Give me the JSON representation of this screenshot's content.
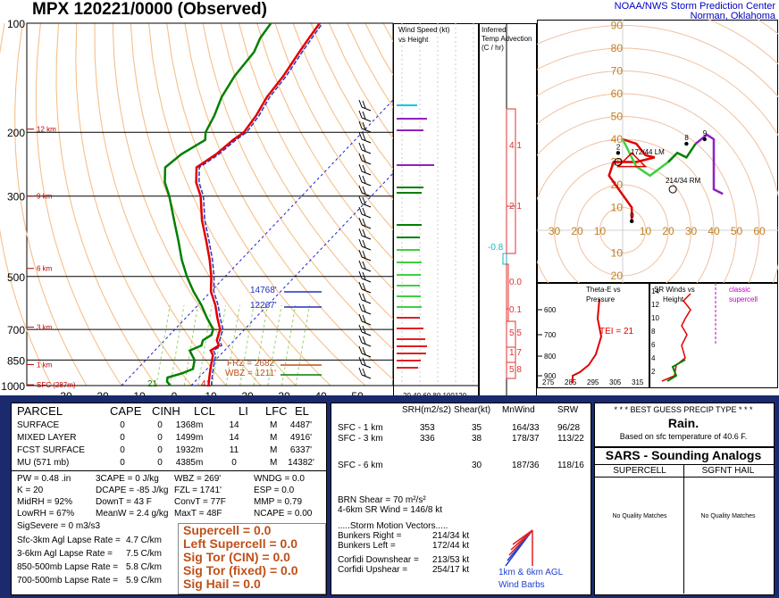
{
  "header": {
    "title": "MPX  120221/0000  (Observed)",
    "org_line1": "NOAA/NWS Storm Prediction Center",
    "org_line2": "Norman, Oklahoma"
  },
  "skewt": {
    "pressure_labels": [
      "100",
      "200",
      "300",
      "500",
      "700",
      "850",
      "1000"
    ],
    "temp_labels": [
      "-30",
      "-20",
      "-10",
      "0",
      "10",
      "20",
      "30",
      "40",
      "50"
    ],
    "height_labels": [
      "12 km",
      "9 km",
      "6 km",
      "3 km",
      "1 km",
      "SFC (287m)"
    ],
    "frz_label": "FRZ = 2682'",
    "wbz_label": "WBZ = 1211'",
    "level_14768": "14768'",
    "level_12267": "12267'",
    "sfc_temp": "41",
    "sfc_dew": "21"
  },
  "wind_panel": {
    "title_line1": "Wind Speed (kt)",
    "title_line2": "vs Height",
    "axis": "20 40 60 80 100120"
  },
  "temp_adv": {
    "title_line1": "Inferred",
    "title_line2": "Temp Advection",
    "title_line3": "(C / hr)",
    "values": [
      "4.1",
      "2.1",
      "-0.8",
      "0.0",
      "0.1",
      "5.5",
      "1.7",
      "5.8"
    ]
  },
  "hodograph": {
    "y_labels": [
      "110",
      "100",
      "90",
      "80",
      "70",
      "60",
      "50",
      "40",
      "30",
      "20",
      "10"
    ],
    "y_labels_neg": [
      "10",
      "20",
      "30"
    ],
    "x_labels": [
      "50",
      "40",
      "30",
      "20",
      "10",
      "10",
      "20",
      "30",
      "40",
      "50",
      "60",
      "70",
      "8"
    ],
    "rm_label": "214/34 RM",
    "lm_label": "172/44 LM",
    "points": [
      "0",
      "2",
      "8",
      "9"
    ]
  },
  "theta_panel": {
    "title_line1": "Theta-E vs",
    "title_line2": "Pressure",
    "tei": "TEI = 21",
    "p_labels": [
      "600",
      "700",
      "800",
      "900"
    ],
    "x_labels": [
      "275",
      "285",
      "295",
      "305",
      "315"
    ]
  },
  "srwind_panel": {
    "title_line1": "SR Winds vs",
    "title_line2": "Height",
    "classic": "classic",
    "supercell": "supercell",
    "h_labels": [
      "14",
      "12",
      "10",
      "8",
      "6",
      "4",
      "2"
    ]
  },
  "parcel": {
    "headers": [
      "PARCEL",
      "CAPE",
      "CINH",
      "LCL",
      "LI",
      "LFC",
      "EL"
    ],
    "rows": [
      [
        "SURFACE",
        "0",
        "0",
        "1368m",
        "14",
        "M",
        "4487'"
      ],
      [
        "MIXED LAYER",
        "0",
        "0",
        "1499m",
        "14",
        "M",
        "4916'"
      ],
      [
        "FCST SURFACE",
        "0",
        "0",
        "1932m",
        "11",
        "M",
        "6337'"
      ],
      [
        "MU   (571 mb)",
        "0",
        "0",
        "4385m",
        "0",
        "M",
        "14382'"
      ]
    ],
    "indices": [
      [
        "PW = 0.48 .in",
        "3CAPE = 0 J/kg",
        "WBZ = 269'",
        "WNDG = 0.0"
      ],
      [
        "K = 20",
        "DCAPE = -85 J/kg",
        "FZL = 1741'",
        "ESP = 0.0"
      ],
      [
        "MidRH = 92%",
        "DownT = 43 F",
        "ConvT = 77F",
        "MMP = 0.79"
      ],
      [
        "LowRH = 67%",
        "MeanW = 2.4 g/kg",
        "MaxT = 48F",
        "NCAPE = 0.00"
      ]
    ],
    "sigsevere": "SigSevere = 0 m3/s3",
    "lapse": [
      [
        "Sfc-3km Agl Lapse Rate =",
        "4.7 C/km"
      ],
      [
        "3-6km Agl Lapse Rate =",
        "7.5 C/km"
      ],
      [
        "850-500mb Lapse Rate =",
        "5.8 C/km"
      ],
      [
        "700-500mb Lapse Rate =",
        "5.9 C/km"
      ]
    ],
    "composite": [
      "Supercell = 0.0",
      "Left Supercell = 0.0",
      "Sig Tor (CIN) = 0.0",
      "Sig Tor (fixed) = 0.0",
      "Sig Hail = 0.0"
    ]
  },
  "kinematics": {
    "headers": [
      "SRH(m2/s2)",
      "Shear(kt)",
      "MnWind",
      "SRW"
    ],
    "rows": [
      [
        "SFC - 1 km",
        "353",
        "35",
        "164/33",
        "96/28"
      ],
      [
        "SFC - 3 km",
        "336",
        "38",
        "178/37",
        "113/22"
      ],
      [
        "SFC - 6 km",
        "",
        "30",
        "187/36",
        "118/16"
      ]
    ],
    "brn": "BRN Shear =  70 m²/s²",
    "sr46": "4-6km SR Wind =        146/8 kt",
    "storm_title": ".....Storm Motion Vectors.....",
    "motions": [
      [
        "Bunkers Right =",
        "214/34 kt"
      ],
      [
        "Bunkers Left =",
        "172/44 kt"
      ],
      [
        "Corfidi Downshear =",
        "213/53 kt"
      ],
      [
        "Corfidi Upshear =",
        "254/17 kt"
      ]
    ],
    "barb_label1": "1km & 6km AGL",
    "barb_label2": "Wind Barbs"
  },
  "precip": {
    "title": "* * * BEST GUESS PRECIP TYPE * * *",
    "value": "Rain.",
    "note": "Based on sfc temperature of 40.6 F."
  },
  "sars": {
    "title": "SARS - Sounding Analogs",
    "col1": "SUPERCELL",
    "col2": "SGFNT HAIL",
    "none1": "No Quality Matches",
    "none2": "No Quality Matches"
  },
  "colors": {
    "temp": "#e00000",
    "dew": "#008000",
    "virtual": "#3030c0",
    "dry_adiabat": "#f5c08a",
    "wind_purple": "#9020c0",
    "wind_cyan": "#00c8e0",
    "sars_header": "#1a2a6c",
    "composite": "#c05018"
  }
}
